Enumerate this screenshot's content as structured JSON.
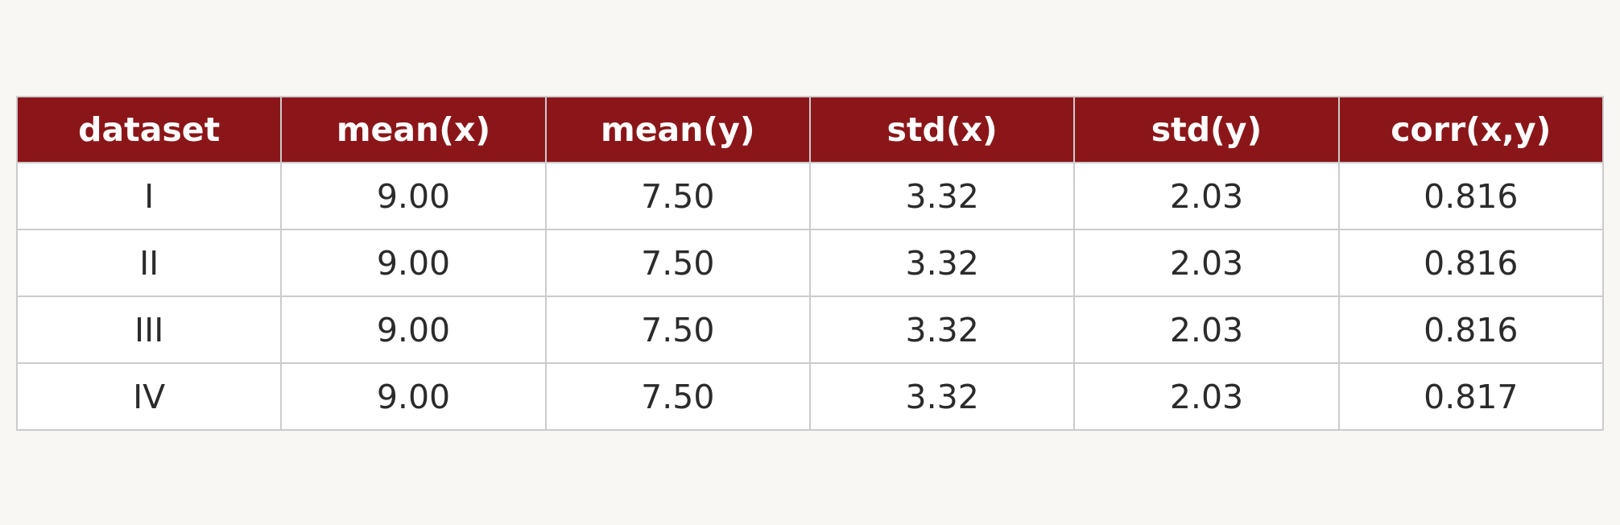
{
  "table": {
    "header": [
      "dataset",
      "mean(x)",
      "mean(y)",
      "std(x)",
      "std(y)",
      "corr(x,y)"
    ],
    "rows": [
      [
        "I",
        "9.00",
        "7.50",
        "3.32",
        "2.03",
        "0.816"
      ],
      [
        "II",
        "9.00",
        "7.50",
        "3.32",
        "2.03",
        "0.816"
      ],
      [
        "III",
        "9.00",
        "7.50",
        "3.32",
        "2.03",
        "0.816"
      ],
      [
        "IV",
        "9.00",
        "7.50",
        "3.32",
        "2.03",
        "0.817"
      ]
    ]
  }
}
